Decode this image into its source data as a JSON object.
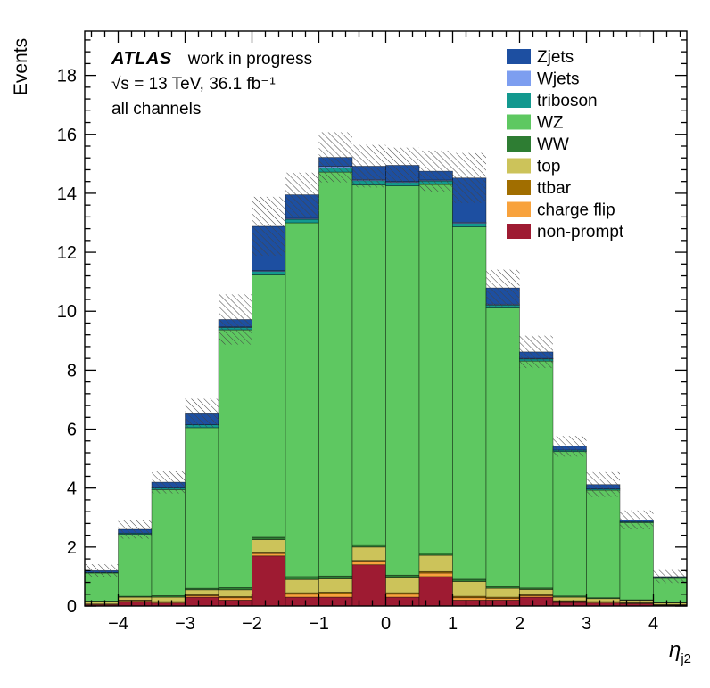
{
  "annotations": {
    "experiment": "ATLAS",
    "status": "work in progress",
    "energy_lumi": "√s = 13 TeV, 36.1 fb⁻¹",
    "channel": "all channels"
  },
  "chart_data": {
    "type": "bar",
    "stacked": true,
    "title": "",
    "ylabel": "Events",
    "xlabel": {
      "symbol": "η",
      "subscript": "j2"
    },
    "xlim": [
      -4.5,
      4.5
    ],
    "ylim": [
      0,
      19.5
    ],
    "x_ticks": [
      -4,
      -3,
      -2,
      -1,
      0,
      1,
      2,
      3,
      4
    ],
    "y_ticks": [
      0,
      2,
      4,
      6,
      8,
      10,
      12,
      14,
      16,
      18
    ],
    "grid": false,
    "legend_position": "top-right",
    "bin_edges": [
      -4.5,
      -4.0,
      -3.5,
      -3.0,
      -2.5,
      -2.0,
      -1.5,
      -1.0,
      -0.5,
      0.0,
      0.5,
      1.0,
      1.5,
      2.0,
      2.5,
      3.0,
      3.5,
      4.0,
      4.5
    ],
    "series": [
      {
        "name": "non-prompt",
        "color": "#9e1b32",
        "values": [
          0.05,
          0.15,
          0.1,
          0.3,
          0.2,
          1.7,
          0.3,
          0.3,
          1.4,
          0.3,
          1.0,
          0.2,
          0.2,
          0.3,
          0.12,
          0.1,
          0.08,
          0.03
        ]
      },
      {
        "name": "charge flip",
        "color": "#f8a23c",
        "values": [
          0.02,
          0.03,
          0.03,
          0.05,
          0.08,
          0.08,
          0.1,
          0.12,
          0.1,
          0.1,
          0.12,
          0.08,
          0.06,
          0.05,
          0.04,
          0.03,
          0.02,
          0.01
        ]
      },
      {
        "name": "ttbar",
        "color": "#a16e00",
        "values": [
          0.0,
          0.02,
          0.02,
          0.03,
          0.04,
          0.05,
          0.05,
          0.05,
          0.05,
          0.05,
          0.05,
          0.05,
          0.04,
          0.03,
          0.02,
          0.02,
          0.01,
          0.01
        ]
      },
      {
        "name": "top",
        "color": "#ccc35a",
        "values": [
          0.08,
          0.1,
          0.15,
          0.17,
          0.23,
          0.42,
          0.45,
          0.45,
          0.45,
          0.5,
          0.55,
          0.5,
          0.3,
          0.18,
          0.12,
          0.1,
          0.08,
          0.05
        ]
      },
      {
        "name": "WW",
        "color": "#2e7d33",
        "values": [
          0.02,
          0.03,
          0.05,
          0.05,
          0.07,
          0.08,
          0.1,
          0.1,
          0.08,
          0.1,
          0.08,
          0.08,
          0.06,
          0.05,
          0.04,
          0.03,
          0.02,
          0.02
        ]
      },
      {
        "name": "WZ",
        "color": "#5ec861",
        "values": [
          0.95,
          2.1,
          3.6,
          5.45,
          8.75,
          8.9,
          12.0,
          13.7,
          12.2,
          13.2,
          12.5,
          11.95,
          9.45,
          7.7,
          4.9,
          3.65,
          2.62,
          0.82
        ]
      },
      {
        "name": "triboson",
        "color": "#13998f",
        "values": [
          0.02,
          0.04,
          0.05,
          0.1,
          0.08,
          0.12,
          0.12,
          0.15,
          0.15,
          0.12,
          0.12,
          0.12,
          0.1,
          0.07,
          0.05,
          0.04,
          0.03,
          0.02
        ]
      },
      {
        "name": "Wjets",
        "color": "#7d9ef0",
        "values": [
          0.0,
          0.0,
          0.0,
          0.0,
          0.02,
          0.03,
          0.03,
          0.05,
          0.04,
          0.03,
          0.03,
          0.04,
          0.03,
          0.02,
          0.0,
          0.0,
          0.0,
          0.0
        ]
      },
      {
        "name": "Zjets",
        "color": "#1d4fa1",
        "values": [
          0.06,
          0.13,
          0.2,
          0.4,
          0.25,
          1.5,
          0.8,
          0.3,
          0.45,
          0.55,
          0.3,
          1.5,
          0.55,
          0.22,
          0.13,
          0.15,
          0.06,
          0.04
        ]
      }
    ],
    "stat_uncertainty": [
      0.22,
      0.32,
      0.38,
      0.48,
      0.85,
      1.0,
      0.75,
      0.85,
      0.72,
      0.6,
      0.7,
      0.85,
      0.62,
      0.55,
      0.35,
      0.42,
      0.32,
      0.22
    ],
    "legend_order_top_to_bottom": [
      "Zjets",
      "Wjets",
      "triboson",
      "WZ",
      "WW",
      "top",
      "ttbar",
      "charge flip",
      "non-prompt"
    ]
  }
}
